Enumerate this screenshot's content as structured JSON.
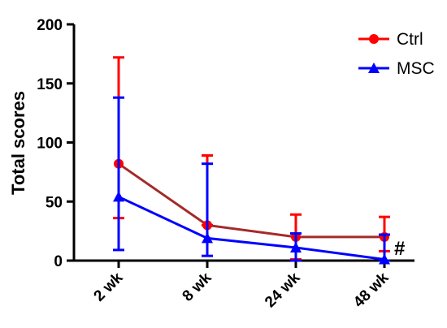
{
  "chart_data": {
    "type": "line",
    "title": "",
    "ylabel": "Total scores",
    "xlabel": "",
    "categories": [
      "2 wk",
      "8 wk",
      "24 wk",
      "48 wk"
    ],
    "ylim": [
      0,
      200
    ],
    "yticks": [
      "0",
      "50",
      "100",
      "150",
      "200"
    ],
    "grid": false,
    "legend_position": "top-right",
    "series": [
      {
        "name": "Ctrl",
        "marker": "circle",
        "color": "#ff0000",
        "line_color": "#a52a2a",
        "values": [
          82,
          30,
          20,
          20
        ],
        "err_upper": [
          172,
          89,
          39,
          37
        ],
        "err_lower": [
          36,
          30,
          1,
          8
        ]
      },
      {
        "name": "MSC",
        "marker": "triangle",
        "color": "#0000ff",
        "line_color": "#0000ff",
        "values": [
          54,
          19,
          11,
          1
        ],
        "err_upper": [
          138,
          82,
          23,
          22
        ],
        "err_lower": [
          9,
          4,
          0,
          0
        ]
      }
    ],
    "annotations": [
      {
        "text": "#",
        "category": "48 wk"
      }
    ]
  }
}
